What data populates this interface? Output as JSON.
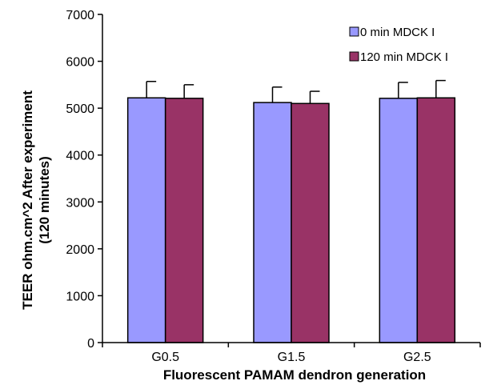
{
  "chart_data": {
    "type": "bar",
    "categories": [
      "G0.5",
      "G1.5",
      "G2.5"
    ],
    "series": [
      {
        "name": "0 min MDCK I",
        "color": "#9999ff",
        "values": [
          5220,
          5120,
          5210
        ],
        "error": [
          350,
          330,
          340
        ]
      },
      {
        "name": "120 min MDCK I",
        "color": "#993366",
        "values": [
          5210,
          5100,
          5220
        ],
        "error": [
          290,
          260,
          370
        ]
      }
    ],
    "xlabel": "Fluorescent PAMAM dendron generation",
    "ylabel_lines": [
      "TEER ohm.cm^2 After experiment",
      "(120 minutes)"
    ],
    "ylim": [
      0,
      7000
    ],
    "ytick_step": 1000,
    "grid": false,
    "legend_position": "top-right",
    "error_bars": "upper"
  }
}
